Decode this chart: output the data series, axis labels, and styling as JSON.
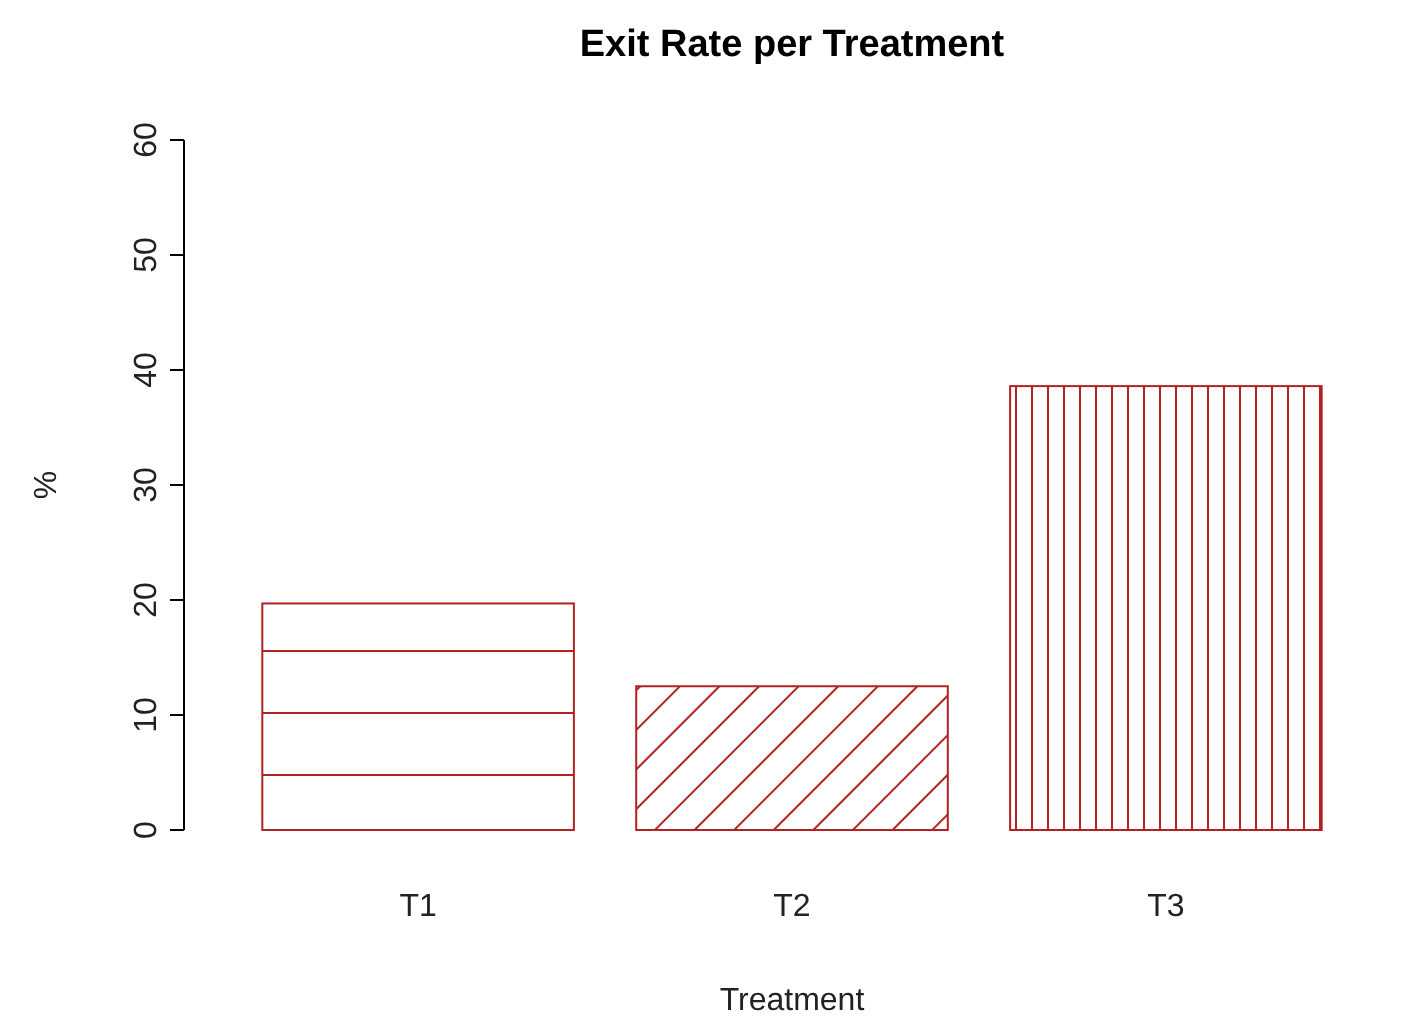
{
  "chart_data": {
    "type": "bar",
    "title": "Exit Rate per Treatment",
    "xlabel": "Treatment",
    "ylabel": "%",
    "categories": [
      "T1",
      "T2",
      "T3"
    ],
    "values": [
      19.7,
      12.5,
      38.6
    ],
    "colors": [
      "#b22222",
      "#b22222",
      "#b22222"
    ],
    "ylim": [
      0,
      60
    ],
    "yticks": [
      0,
      10,
      20,
      30,
      40,
      50,
      60
    ],
    "grid": false
  }
}
